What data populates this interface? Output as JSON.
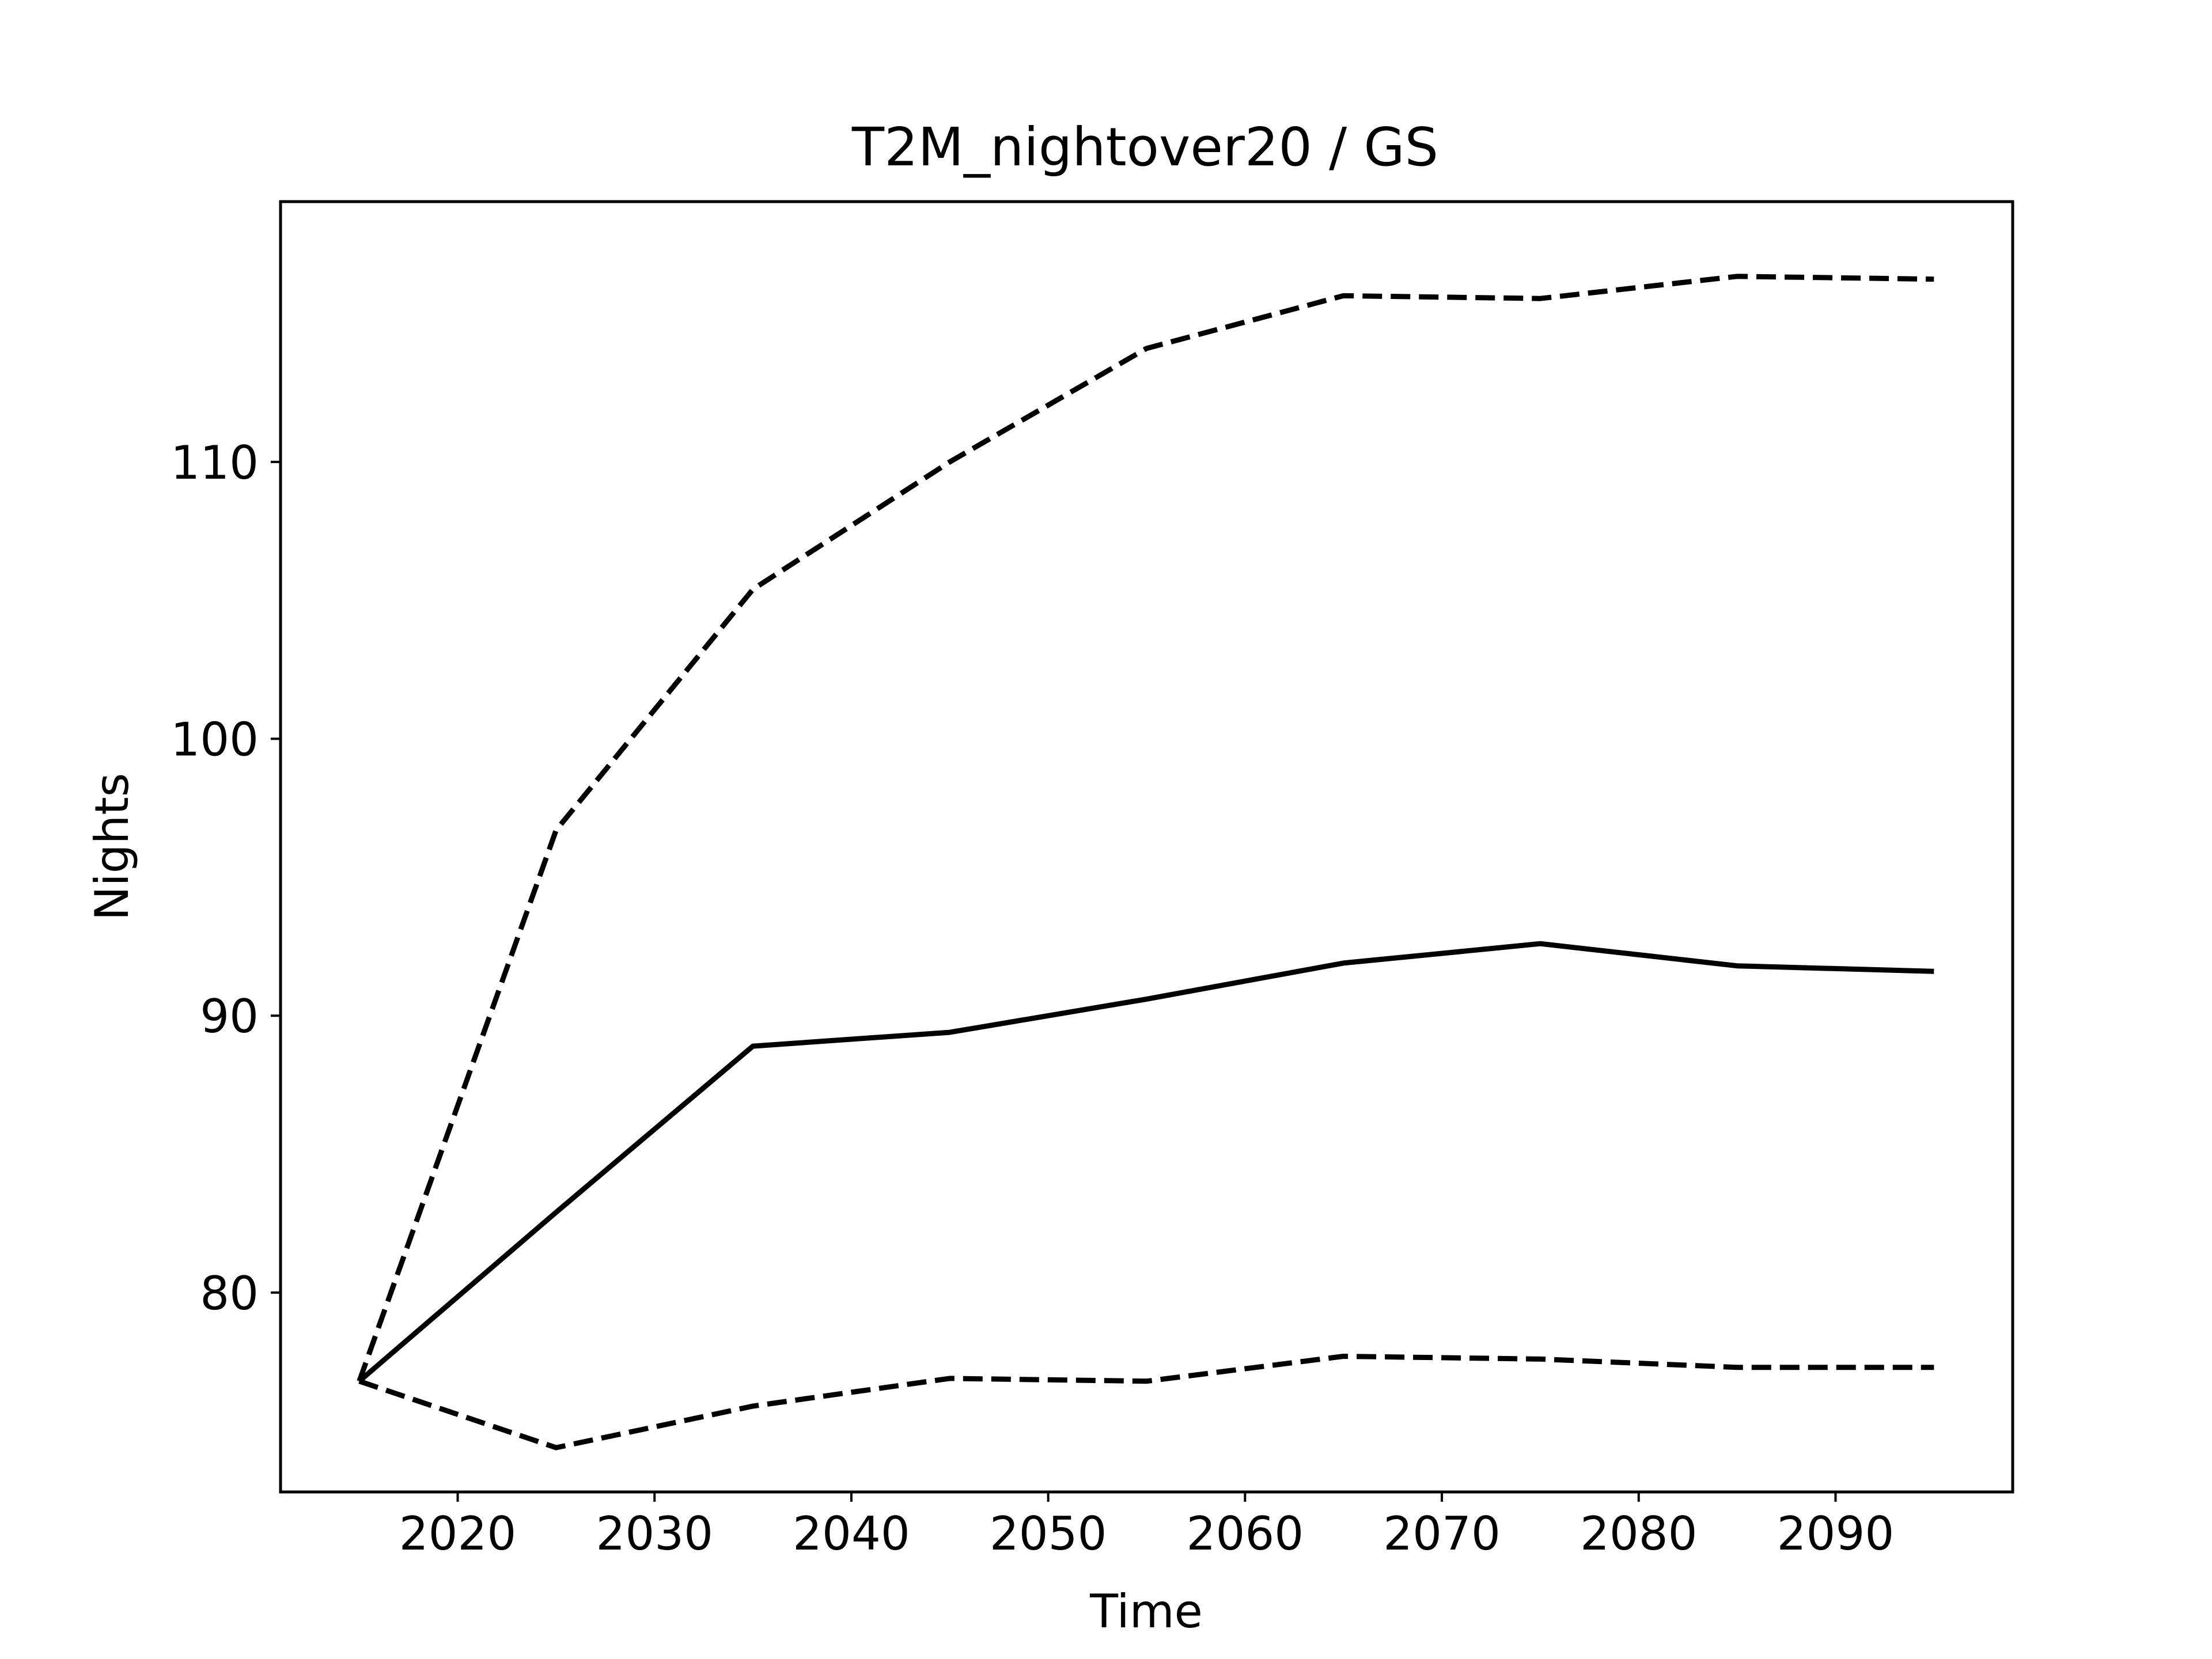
{
  "chart_data": {
    "type": "line",
    "title": "T2M_nightover20 / GS",
    "xlabel": "Time",
    "ylabel": "Nights",
    "x": [
      2015,
      2025,
      2035,
      2045,
      2055,
      2065,
      2075,
      2085,
      2095
    ],
    "xlim": [
      2011,
      2099
    ],
    "ylim": [
      72.8,
      119.4
    ],
    "xticks": [
      2020,
      2030,
      2040,
      2050,
      2060,
      2070,
      2080,
      2090
    ],
    "xtick_labels": [
      "2020",
      "2030",
      "2040",
      "2050",
      "2060",
      "2070",
      "2080",
      "2090"
    ],
    "yticks": [
      80,
      90,
      100,
      110
    ],
    "ytick_labels": [
      "80",
      "90",
      "100",
      "110"
    ],
    "grid": false,
    "series": [
      {
        "style": "dashed",
        "color": "#000000",
        "values": [
          76.8,
          96.7,
          105.4,
          110.0,
          114.1,
          116.0,
          115.9,
          116.7,
          116.6
        ]
      },
      {
        "style": "solid",
        "color": "#000000",
        "values": [
          76.8,
          82.9,
          88.9,
          89.4,
          90.6,
          91.9,
          92.6,
          91.8,
          91.6
        ]
      },
      {
        "style": "dashed",
        "color": "#000000",
        "values": [
          76.8,
          74.4,
          75.9,
          76.9,
          76.8,
          77.7,
          77.6,
          77.3,
          77.3
        ]
      }
    ]
  }
}
